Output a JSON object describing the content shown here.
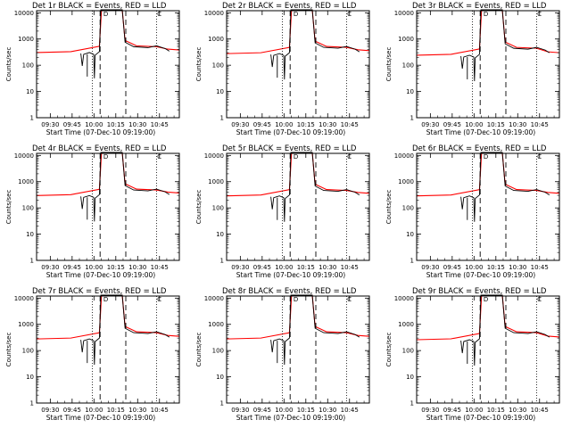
{
  "chart_data": [
    {
      "type": "line",
      "title": "Det 1r BLACK = Events, RED = LLD",
      "xlabel": "Start Time (07-Dec-10 09:19:00)",
      "ylabel": "Counts/sec",
      "x_ticks": [
        "09:30",
        "09:45",
        "10:00",
        "10:15",
        "10:30",
        "10:45"
      ],
      "y_ticks": [
        "1",
        "10",
        "100",
        "1000",
        "10000"
      ],
      "ylim": [
        1,
        12000
      ],
      "yscale": "log",
      "markers": [
        "D",
        "C"
      ],
      "level_pre": 330,
      "level_post": 550,
      "level_end": 380
    },
    {
      "type": "line",
      "title": "Det 2r BLACK = Events, RED = LLD",
      "xlabel": "Start Time (07-Dec-10 09:19:00)",
      "ylabel": "Counts/sec",
      "x_ticks": [
        "09:30",
        "09:45",
        "10:00",
        "10:15",
        "10:30",
        "10:45"
      ],
      "y_ticks": [
        "1",
        "10",
        "100",
        "1000",
        "10000"
      ],
      "ylim": [
        1,
        12000
      ],
      "yscale": "log",
      "markers": [
        "D",
        "C"
      ],
      "level_pre": 300,
      "level_post": 520,
      "level_end": 360
    },
    {
      "type": "line",
      "title": "Det 3r BLACK = Events, RED = LLD",
      "xlabel": "Start Time (07-Dec-10 09:19:00)",
      "ylabel": "Counts/sec",
      "x_ticks": [
        "09:30",
        "09:45",
        "10:00",
        "10:15",
        "10:30",
        "10:45"
      ],
      "y_ticks": [
        "1",
        "10",
        "100",
        "1000",
        "10000"
      ],
      "ylim": [
        1,
        12000
      ],
      "yscale": "log",
      "markers": [
        "D",
        "C"
      ],
      "level_pre": 260,
      "level_post": 480,
      "level_end": 300
    },
    {
      "type": "line",
      "title": "Det 4r BLACK = Events, RED = LLD",
      "xlabel": "Start Time (07-Dec-10 09:19:00)",
      "ylabel": "Counts/sec",
      "x_ticks": [
        "09:30",
        "09:45",
        "10:00",
        "10:15",
        "10:30",
        "10:45"
      ],
      "y_ticks": [
        "1",
        "10",
        "100",
        "1000",
        "10000"
      ],
      "ylim": [
        1,
        12000
      ],
      "yscale": "log",
      "markers": [
        "D",
        "C"
      ],
      "level_pre": 320,
      "level_post": 520,
      "level_end": 370
    },
    {
      "type": "line",
      "title": "Det 5r BLACK = Events, RED = LLD",
      "xlabel": "Start Time (07-Dec-10 09:19:00)",
      "ylabel": "Counts/sec",
      "x_ticks": [
        "09:30",
        "09:45",
        "10:00",
        "10:15",
        "10:30",
        "10:45"
      ],
      "y_ticks": [
        "1",
        "10",
        "100",
        "1000",
        "10000"
      ],
      "ylim": [
        1,
        12000
      ],
      "yscale": "log",
      "markers": [
        "D",
        "C"
      ],
      "level_pre": 310,
      "level_post": 500,
      "level_end": 360
    },
    {
      "type": "line",
      "title": "Det 6r BLACK = Events, RED = LLD",
      "xlabel": "Start Time (07-Dec-10 09:19:00)",
      "ylabel": "Counts/sec",
      "x_ticks": [
        "09:30",
        "09:45",
        "10:00",
        "10:15",
        "10:30",
        "10:45"
      ],
      "y_ticks": [
        "1",
        "10",
        "100",
        "1000",
        "10000"
      ],
      "ylim": [
        1,
        12000
      ],
      "yscale": "log",
      "markers": [
        "D",
        "C"
      ],
      "level_pre": 310,
      "level_post": 500,
      "level_end": 360
    },
    {
      "type": "line",
      "title": "Det 7r BLACK = Events, RED = LLD",
      "xlabel": "Start Time (07-Dec-10 09:19:00)",
      "ylabel": "Counts/sec",
      "x_ticks": [
        "09:30",
        "09:45",
        "10:00",
        "10:15",
        "10:30",
        "10:45"
      ],
      "y_ticks": [
        "1",
        "10",
        "100",
        "1000",
        "10000"
      ],
      "ylim": [
        1,
        12000
      ],
      "yscale": "log",
      "markers": [
        "D",
        "C"
      ],
      "level_pre": 300,
      "level_post": 520,
      "level_end": 350
    },
    {
      "type": "line",
      "title": "Det 8r BLACK = Events, RED = LLD",
      "xlabel": "Start Time (07-Dec-10 09:19:00)",
      "ylabel": "Counts/sec",
      "x_ticks": [
        "09:30",
        "09:45",
        "10:00",
        "10:15",
        "10:30",
        "10:45"
      ],
      "y_ticks": [
        "1",
        "10",
        "100",
        "1000",
        "10000"
      ],
      "ylim": [
        1,
        12000
      ],
      "yscale": "log",
      "markers": [
        "D",
        "C"
      ],
      "level_pre": 300,
      "level_post": 520,
      "level_end": 350
    },
    {
      "type": "line",
      "title": "Det 9r BLACK = Events, RED = LLD",
      "xlabel": "Start Time (07-Dec-10 09:19:00)",
      "ylabel": "Counts/sec",
      "x_ticks": [
        "09:30",
        "09:45",
        "10:00",
        "10:15",
        "10:30",
        "10:45"
      ],
      "y_ticks": [
        "1",
        "10",
        "100",
        "1000",
        "10000"
      ],
      "ylim": [
        1,
        12000
      ],
      "yscale": "log",
      "markers": [
        "D",
        "C"
      ],
      "level_pre": 280,
      "level_post": 520,
      "level_end": 330
    }
  ],
  "colors": {
    "events": "#000000",
    "lld": "#ff0000",
    "axes": "#000000",
    "background": "#ffffff"
  }
}
